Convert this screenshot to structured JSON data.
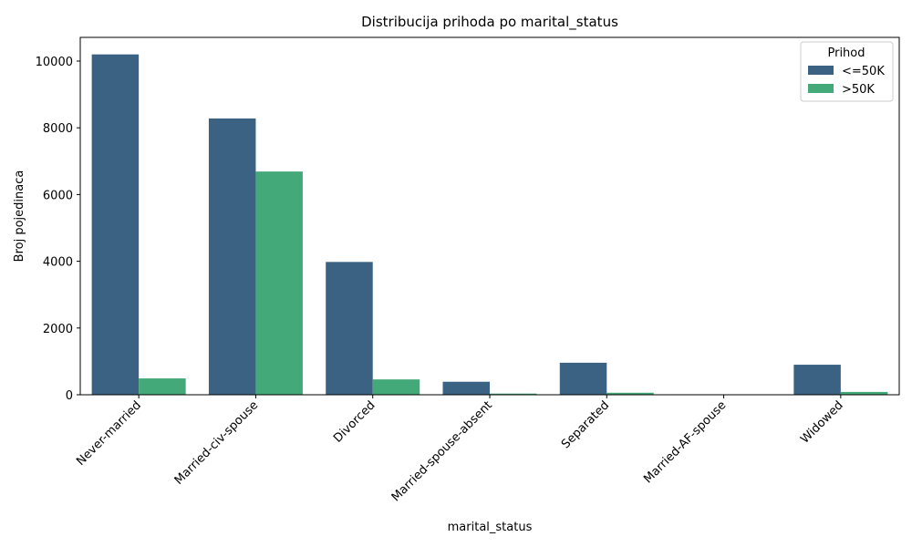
{
  "chart_data": {
    "type": "bar",
    "title": "Distribucija prihoda po marital_status",
    "xlabel": "marital_status",
    "ylabel": "Broj pojedinaca",
    "categories": [
      "Never-married",
      "Married-civ-spouse",
      "Divorced",
      "Married-spouse-absent",
      "Separated",
      "Married-AF-spouse",
      "Widowed"
    ],
    "series": [
      {
        "name": "<=50K",
        "color": "#3b6282",
        "values": [
          10200,
          8280,
          3980,
          390,
          960,
          14,
          900
        ]
      },
      {
        "name": ">50K",
        "color": "#44a978",
        "values": [
          490,
          6690,
          460,
          35,
          60,
          10,
          85
        ]
      }
    ],
    "ylim": [
      0,
      10710
    ],
    "yticks": [
      0,
      2000,
      4000,
      6000,
      8000,
      10000
    ],
    "legend": {
      "title": "Prihod",
      "position": "top-right"
    },
    "grid": false
  }
}
